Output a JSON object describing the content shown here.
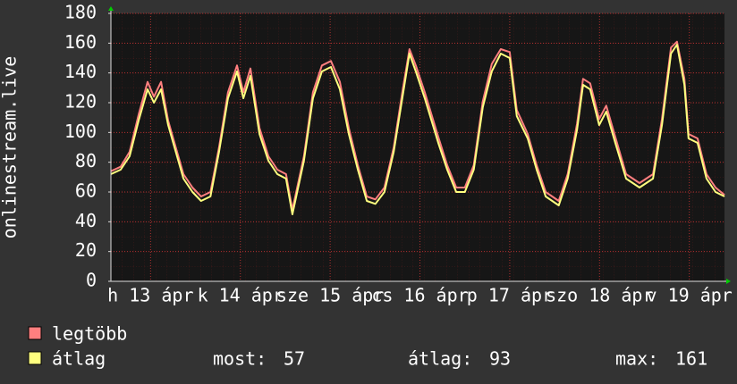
{
  "chart_data": {
    "type": "line",
    "y_label": "onlinestream.live",
    "x": [
      1.4,
      4.0,
      6.4,
      8.8,
      11.2,
      12.9,
      14.8,
      16.7,
      18.4,
      20.8,
      23.2,
      25.5,
      28.0,
      30.3,
      32.7,
      35.1,
      36.8,
      38.7,
      41.1,
      43.5,
      45.9,
      48.2,
      49.9,
      53.0,
      55.4,
      57.8,
      60.2,
      62.6,
      65.0,
      67.4,
      69.8,
      72.1,
      74.5,
      77.0,
      79.3,
      81.2,
      82.9,
      85.3,
      88.9,
      91.3,
      93.7,
      96.0,
      98.4,
      100.8,
      103.2,
      105.6,
      108.0,
      109.9,
      112.8,
      115.2,
      117.6,
      121.1,
      123.5,
      126.0,
      127.6,
      129.5,
      131.9,
      133.8,
      136.2,
      139.1,
      142.7,
      146.3,
      148.7,
      151.1,
      152.7,
      154.7,
      155.8,
      158.2,
      160.6,
      163.0,
      165.4
    ],
    "series": [
      {
        "name": "legtöbb",
        "color": "#ff7f7f",
        "values": [
          74,
          77,
          87,
          112,
          134,
          124,
          134,
          108,
          93,
          72,
          63,
          57,
          60,
          90,
          127,
          145,
          127,
          143,
          103,
          84,
          75,
          72,
          48,
          84,
          127,
          145,
          148,
          134,
          103,
          78,
          57,
          55,
          63,
          90,
          127,
          156,
          145,
          127,
          97,
          78,
          63,
          63,
          78,
          121,
          146,
          156,
          154,
          115,
          99,
          78,
          60,
          54,
          72,
          106,
          136,
          133,
          109,
          118,
          97,
          72,
          66,
          72,
          109,
          157,
          161,
          136,
          99,
          96,
          72,
          63,
          58
        ]
      },
      {
        "name": "átlag",
        "color": "#ffff7f",
        "values": [
          72,
          75,
          84,
          108,
          129,
          120,
          129,
          105,
          90,
          69,
          60,
          54,
          57,
          87,
          123,
          141,
          123,
          138,
          99,
          81,
          72,
          69,
          45,
          81,
          123,
          141,
          144,
          129,
          99,
          75,
          54,
          52,
          60,
          87,
          123,
          153,
          141,
          123,
          93,
          75,
          60,
          60,
          75,
          117,
          141,
          153,
          150,
          111,
          96,
          75,
          57,
          51,
          69,
          102,
          132,
          129,
          105,
          114,
          93,
          69,
          63,
          69,
          105,
          153,
          159,
          132,
          96,
          93,
          69,
          60,
          57
        ]
      }
    ],
    "xlim": [
      1.4,
      165.4
    ],
    "xticks": [
      {
        "value": 12,
        "label": "h 13 ápr"
      },
      {
        "value": 36,
        "label": "k 14 ápr"
      },
      {
        "value": 60,
        "label": "sze 15 ápr"
      },
      {
        "value": 84,
        "label": "cs 16 ápr"
      },
      {
        "value": 108,
        "label": "p 17 ápr"
      },
      {
        "value": 132,
        "label": "szo 18 ápr"
      },
      {
        "value": 156,
        "label": "v 19 ápr"
      }
    ],
    "ylim": [
      0,
      180
    ],
    "yticks": [
      0,
      20,
      40,
      60,
      80,
      100,
      120,
      140,
      160,
      180
    ],
    "grid": true,
    "stats": [
      {
        "label": "most:",
        "value": 57
      },
      {
        "label": "átlag:",
        "value": 93
      },
      {
        "label": "max:",
        "value": 161
      }
    ]
  }
}
